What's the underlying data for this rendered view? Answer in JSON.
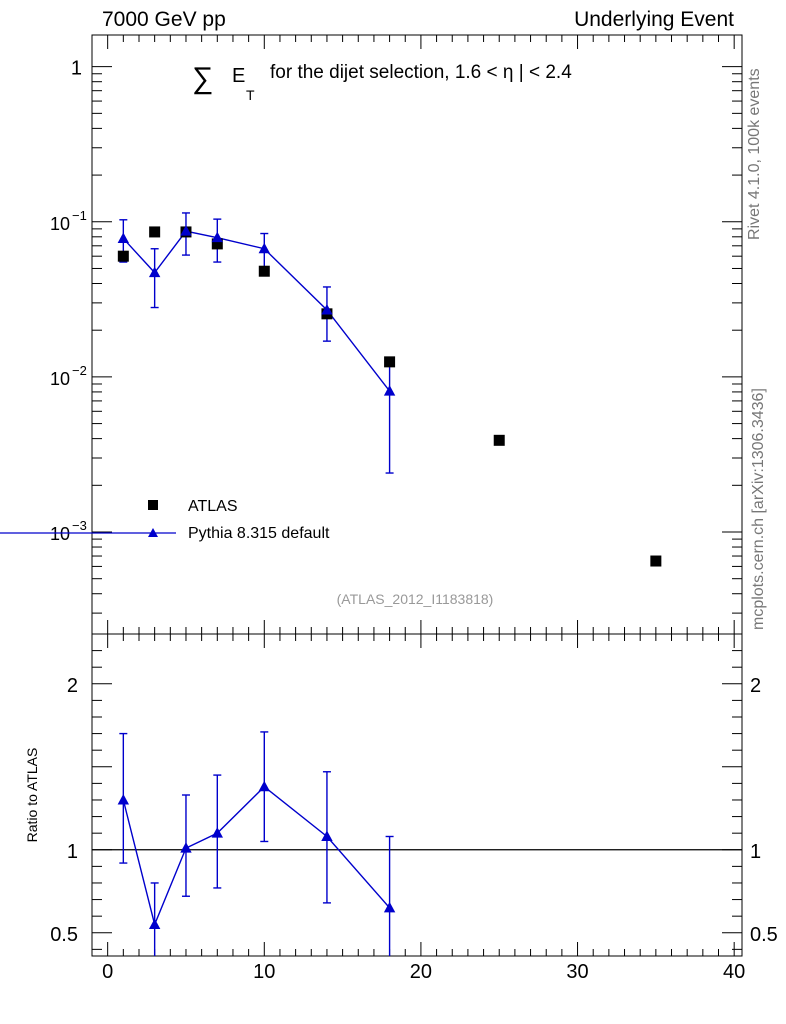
{
  "header": {
    "left": "7000 GeV pp",
    "right": "Underlying Event"
  },
  "side_labels": {
    "rivet": "Rivet 4.1.0,  100k events",
    "mcplots": "mcplots.cern.ch [arXiv:1306.3436]"
  },
  "chart_data": {
    "type": "scatter",
    "title": {
      "sum": "∑",
      "e": "E",
      "sub": "T",
      "rest": "for the dijet selection, 1.6 <",
      "eta": "η",
      "tail": "| < 2.4"
    },
    "analysis_tag": "(ATLAS_2012_I1183818)",
    "legend": {
      "position": "lower-left"
    },
    "main": {
      "yscale": "log",
      "ylim": [
        0.00022,
        1.6
      ],
      "yticks": [
        {
          "value": 1,
          "label": "1"
        },
        {
          "value": 0.1,
          "label": "10",
          "exp": "−1"
        },
        {
          "value": 0.01,
          "label": "10",
          "exp": "−2"
        },
        {
          "value": 0.001,
          "label": "10",
          "exp": "−3"
        }
      ]
    },
    "xlim": [
      -1,
      40.5
    ],
    "xticks": [
      {
        "value": 0,
        "label": "0"
      },
      {
        "value": 10,
        "label": "10"
      },
      {
        "value": 20,
        "label": "20"
      },
      {
        "value": 30,
        "label": "30"
      },
      {
        "value": 40,
        "label": "40"
      }
    ],
    "series": [
      {
        "name": "ATLAS",
        "color": "#000000",
        "marker": "square",
        "x": [
          1,
          3,
          5,
          7,
          10,
          14,
          18,
          25,
          35
        ],
        "y": [
          0.06,
          0.086,
          0.086,
          0.072,
          0.048,
          0.0255,
          0.0125,
          0.0039,
          0.00065
        ]
      },
      {
        "name": "Pythia 8.315 default",
        "color": "#0000cc",
        "marker": "triangle",
        "x": [
          1,
          3,
          5,
          7,
          10,
          14,
          18
        ],
        "y": [
          0.078,
          0.047,
          0.087,
          0.079,
          0.067,
          0.027,
          0.0081
        ],
        "err_low": [
          0.055,
          0.028,
          0.061,
          0.055,
          0.05,
          0.017,
          0.0024
        ],
        "err_high": [
          0.103,
          0.067,
          0.114,
          0.104,
          0.084,
          0.038,
          0.0125
        ]
      }
    ],
    "ratio": {
      "ylabel": "Ratio to ATLAS",
      "ylim": [
        0.36,
        2.3
      ],
      "yticks": [
        {
          "value": 0.5,
          "label": "0.5"
        },
        {
          "value": 1,
          "label": "1"
        },
        {
          "value": 2,
          "label": "2"
        }
      ],
      "reference": 1,
      "series": {
        "name": "Pythia 8.315 default",
        "color": "#0000cc",
        "x": [
          1,
          3,
          5,
          7,
          10,
          14,
          18
        ],
        "y": [
          1.3,
          0.55,
          1.01,
          1.1,
          1.38,
          1.08,
          0.65
        ],
        "err_low": [
          0.92,
          0.0,
          0.72,
          0.77,
          1.05,
          0.68,
          0.0
        ],
        "err_high": [
          1.7,
          0.8,
          1.33,
          1.45,
          1.71,
          1.47,
          1.08
        ]
      }
    }
  }
}
